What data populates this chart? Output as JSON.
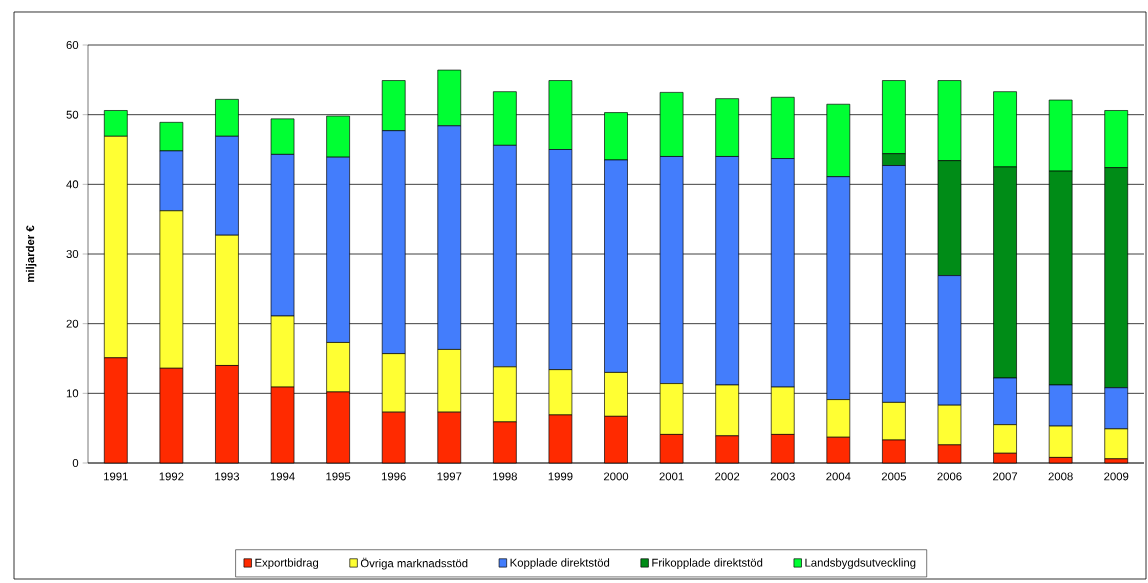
{
  "chart_data": {
    "type": "bar",
    "stacked": true,
    "ylabel": "miljarder €",
    "categories": [
      "1991",
      "1992",
      "1993",
      "1994",
      "1995",
      "1996",
      "1997",
      "1998",
      "1999",
      "2000",
      "2001",
      "2002",
      "2003",
      "2004",
      "2005",
      "2006",
      "2007",
      "2008",
      "2009"
    ],
    "series": [
      {
        "name": "Exportbidrag",
        "color": "#ff2a00",
        "values": [
          15.1,
          13.6,
          14.0,
          10.9,
          10.2,
          7.3,
          7.3,
          5.9,
          6.9,
          6.7,
          4.1,
          3.9,
          4.1,
          3.7,
          3.3,
          2.6,
          1.4,
          0.8,
          0.6
        ]
      },
      {
        "name": "Övriga marknadsstöd",
        "color": "#ffff33",
        "values": [
          31.8,
          22.6,
          18.7,
          10.2,
          7.1,
          8.4,
          9.0,
          7.9,
          6.5,
          6.3,
          7.3,
          7.3,
          6.8,
          5.4,
          5.4,
          5.7,
          4.1,
          4.5,
          4.3
        ]
      },
      {
        "name": "Kopplade direktstöd",
        "color": "#437dfc",
        "values": [
          0,
          8.6,
          14.2,
          23.2,
          26.6,
          32.0,
          32.1,
          31.8,
          31.6,
          30.5,
          32.6,
          32.8,
          32.8,
          32.0,
          34.0,
          18.6,
          6.7,
          5.9,
          5.9
        ]
      },
      {
        "name": "Frikopplade direktstöd",
        "color": "#008c17",
        "values": [
          0,
          0,
          0,
          0,
          0,
          0,
          0,
          0,
          0,
          0,
          0,
          0,
          0,
          0,
          1.7,
          16.5,
          30.3,
          30.7,
          31.6
        ]
      },
      {
        "name": "Landsbygdsutveckling",
        "color": "#00ff33",
        "values": [
          3.7,
          4.1,
          5.3,
          5.1,
          5.9,
          7.2,
          8.0,
          7.7,
          9.9,
          6.8,
          9.2,
          8.3,
          8.8,
          10.4,
          10.5,
          11.5,
          10.8,
          10.2,
          8.2
        ]
      }
    ],
    "ylim": [
      0,
      60
    ],
    "yticks": [
      0,
      10,
      20,
      30,
      40,
      50,
      60
    ],
    "grid": "y",
    "legend": "bottom"
  }
}
